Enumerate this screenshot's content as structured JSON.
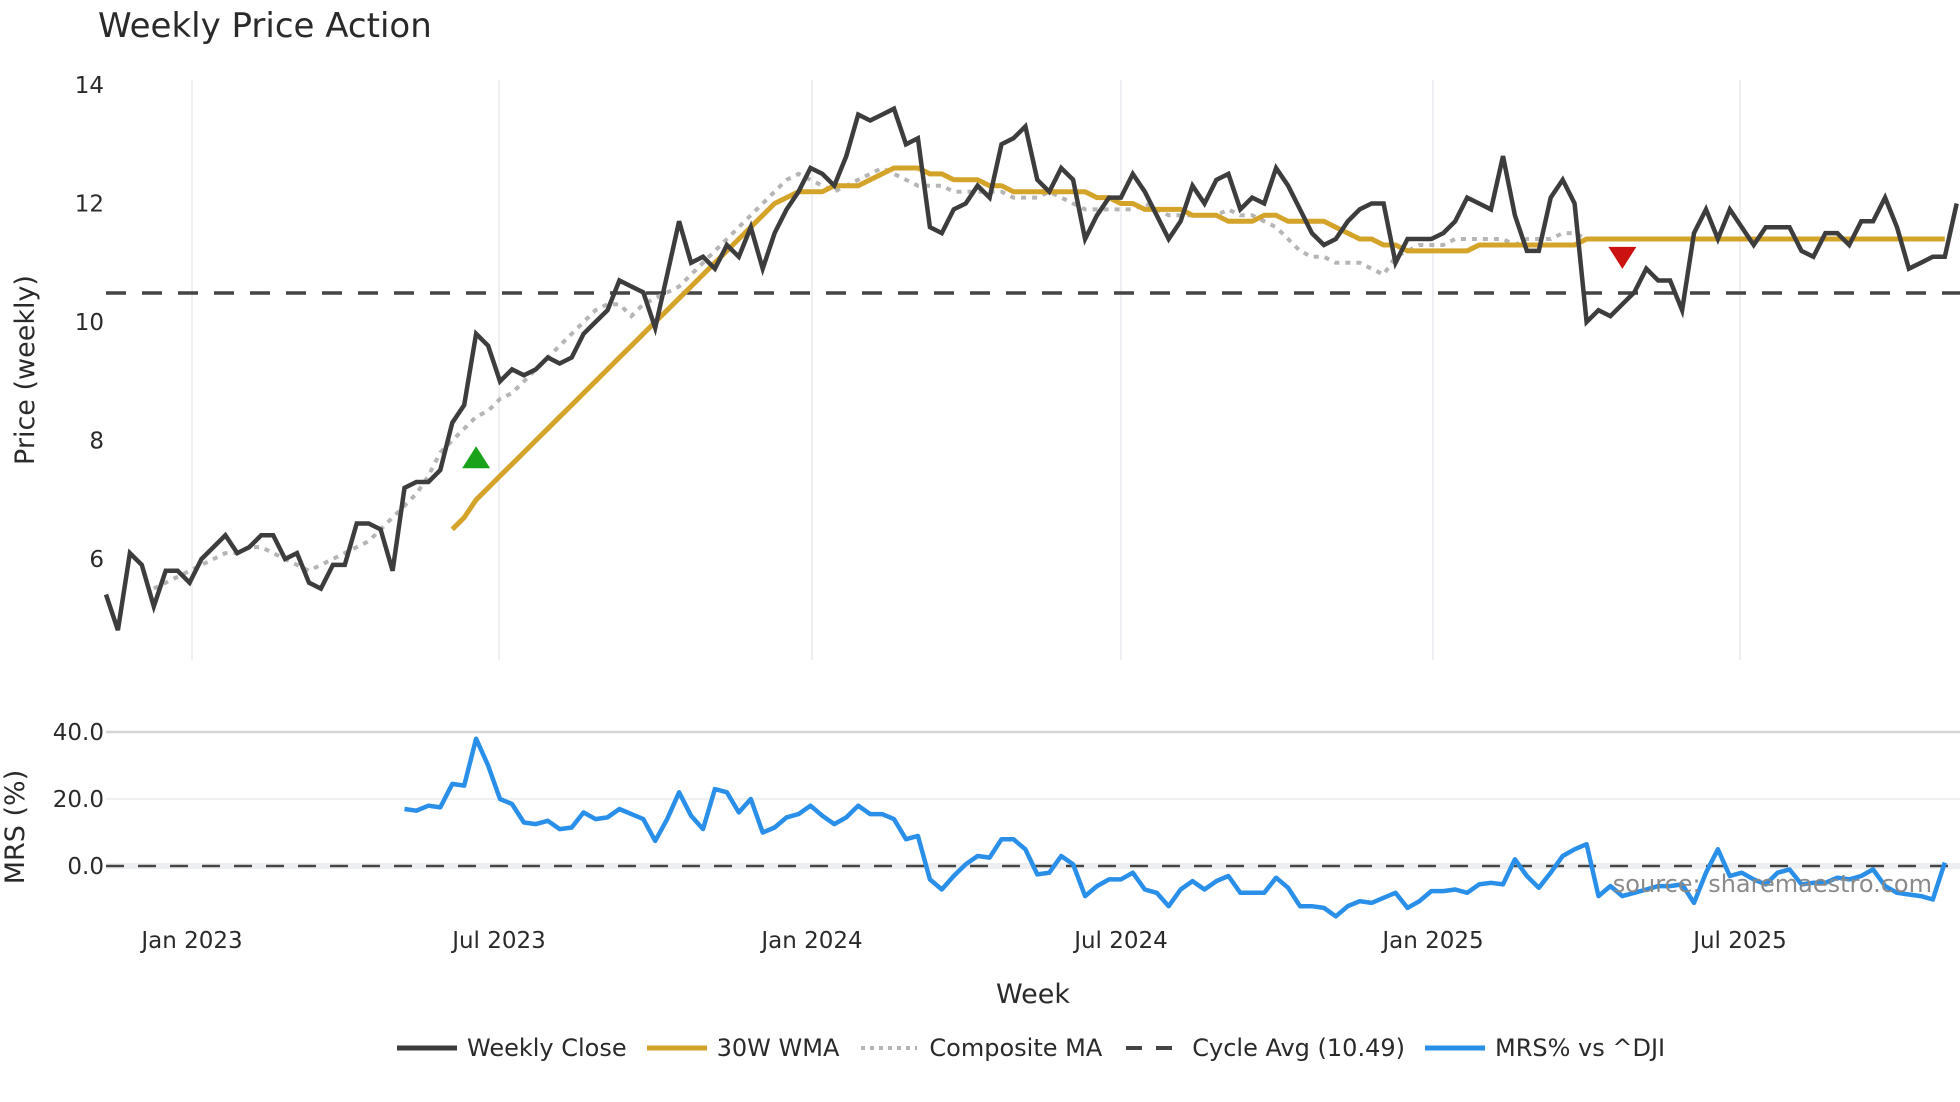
{
  "title": "Weekly Price Action",
  "watermark": "source: sharemaestro.com",
  "colors": {
    "weekly_close": "#3d3d3d",
    "wma30": "#d4a32a",
    "composite_ma": "#b5b5b5",
    "cycle_avg": "#444444",
    "mrs": "#2a8fe8",
    "buy_marker": "#1aa31a",
    "sell_marker": "#cc1111",
    "grid": "#e8eaee"
  },
  "legend": [
    {
      "key": "weekly_close",
      "label": "Weekly Close",
      "style": "solid"
    },
    {
      "key": "wma30",
      "label": "30W WMA",
      "style": "solid"
    },
    {
      "key": "composite_ma",
      "label": "Composite MA",
      "style": "dotted"
    },
    {
      "key": "cycle_avg",
      "label": "Cycle Avg (10.49)",
      "style": "dashed"
    },
    {
      "key": "mrs",
      "label": "MRS% vs ^DJI",
      "style": "solid"
    }
  ],
  "chart_data": [
    {
      "type": "line",
      "title": "Weekly Price Action",
      "xlabel": "Week",
      "ylabel": "Price (weekly)",
      "ylim": [
        4.3,
        14.3
      ],
      "yticks": [
        6,
        8,
        10,
        12,
        14
      ],
      "xticks": [
        "Jan 2023",
        "Jul 2023",
        "Jan 2024",
        "Jul 2024",
        "Jan 2025",
        "Jul 2025"
      ],
      "grid": true,
      "legend_position": "bottom",
      "x_start": "2022-11-07",
      "x_step": "1 week",
      "series": [
        {
          "name": "Weekly Close",
          "values": [
            5.4,
            4.8,
            6.1,
            5.9,
            5.2,
            5.8,
            5.8,
            5.6,
            6.0,
            6.2,
            6.4,
            6.1,
            6.2,
            6.4,
            6.4,
            6.0,
            6.1,
            5.6,
            5.5,
            5.9,
            5.9,
            6.6,
            6.6,
            6.5,
            5.8,
            7.2,
            7.3,
            7.3,
            7.5,
            8.3,
            8.6,
            9.8,
            9.6,
            9.0,
            9.2,
            9.1,
            9.2,
            9.4,
            9.3,
            9.4,
            9.8,
            10.0,
            10.2,
            10.7,
            10.6,
            10.5,
            9.9,
            10.8,
            11.7,
            11.0,
            11.1,
            10.9,
            11.3,
            11.1,
            11.6,
            10.9,
            11.5,
            11.9,
            12.2,
            12.6,
            12.5,
            12.3,
            12.8,
            13.5,
            13.4,
            13.5,
            13.6,
            13.0,
            13.1,
            11.6,
            11.5,
            11.9,
            12.0,
            12.3,
            12.1,
            13.0,
            13.1,
            13.3,
            12.4,
            12.2,
            12.6,
            12.4,
            11.4,
            11.8,
            12.1,
            12.1,
            12.5,
            12.2,
            11.8,
            11.4,
            11.7,
            12.3,
            12.0,
            12.4,
            12.5,
            11.9,
            12.1,
            12.0,
            12.6,
            12.3,
            11.9,
            11.5,
            11.3,
            11.4,
            11.7,
            11.9,
            12.0,
            12.0,
            11.0,
            11.4,
            11.4,
            11.4,
            11.5,
            11.7,
            12.1,
            12.0,
            11.9,
            12.8,
            11.8,
            11.2,
            11.2,
            12.1,
            12.4,
            12.0,
            10.0,
            10.2,
            10.1,
            10.3,
            10.5,
            10.9,
            10.7,
            10.7,
            10.2,
            11.5,
            11.9,
            11.4,
            11.9,
            11.6,
            11.3,
            11.6,
            11.6,
            11.6,
            11.2,
            11.1,
            11.5,
            11.5,
            11.3,
            11.7,
            11.7,
            12.1,
            11.6,
            10.9,
            11.0,
            11.1,
            11.1,
            12.0
          ]
        },
        {
          "name": "30W WMA",
          "start_index": 29,
          "values": [
            6.5,
            6.7,
            7.0,
            7.2,
            7.4,
            7.6,
            7.8,
            8.0,
            8.2,
            8.4,
            8.6,
            8.8,
            9.0,
            9.2,
            9.4,
            9.6,
            9.8,
            10.0,
            10.2,
            10.4,
            10.6,
            10.8,
            11.0,
            11.2,
            11.4,
            11.6,
            11.8,
            12.0,
            12.1,
            12.2,
            12.2,
            12.2,
            12.3,
            12.3,
            12.3,
            12.4,
            12.5,
            12.6,
            12.6,
            12.6,
            12.5,
            12.5,
            12.4,
            12.4,
            12.4,
            12.3,
            12.3,
            12.2,
            12.2,
            12.2,
            12.2,
            12.2,
            12.2,
            12.2,
            12.1,
            12.1,
            12.0,
            12.0,
            11.9,
            11.9,
            11.9,
            11.9,
            11.8,
            11.8,
            11.8,
            11.7,
            11.7,
            11.7,
            11.8,
            11.8,
            11.7,
            11.7,
            11.7,
            11.7,
            11.6,
            11.5,
            11.4,
            11.4,
            11.3,
            11.3,
            11.2,
            11.2,
            11.2,
            11.2,
            11.2,
            11.2,
            11.3,
            11.3,
            11.3,
            11.3,
            11.3,
            11.3,
            11.3,
            11.3,
            11.3,
            11.4,
            11.4,
            11.4,
            11.4,
            11.4,
            11.4,
            11.4,
            11.4,
            11.4,
            11.4,
            11.4,
            11.4,
            11.4,
            11.4,
            11.4,
            11.4,
            11.4,
            11.4,
            11.4,
            11.4,
            11.4,
            11.4,
            11.4,
            11.4,
            11.4,
            11.4,
            11.4,
            11.4,
            11.4,
            11.4,
            11.4
          ]
        },
        {
          "name": "Composite MA",
          "start_index": 4,
          "values": [
            5.5,
            5.6,
            5.7,
            5.8,
            5.9,
            6.0,
            6.1,
            6.1,
            6.2,
            6.2,
            6.1,
            6.0,
            5.9,
            5.8,
            5.9,
            6.0,
            6.1,
            6.2,
            6.3,
            6.5,
            6.7,
            6.9,
            7.1,
            7.4,
            7.8,
            8.0,
            8.2,
            8.4,
            8.5,
            8.7,
            8.8,
            9.0,
            9.2,
            9.4,
            9.6,
            9.8,
            10.0,
            10.2,
            10.3,
            10.3,
            10.1,
            10.3,
            10.4,
            10.5,
            10.6,
            10.8,
            11.0,
            11.2,
            11.4,
            11.6,
            11.8,
            12.0,
            12.2,
            12.4,
            12.5,
            12.4,
            12.3,
            12.2,
            12.3,
            12.4,
            12.5,
            12.6,
            12.5,
            12.4,
            12.3,
            12.3,
            12.3,
            12.2,
            12.2,
            12.2,
            12.2,
            12.2,
            12.1,
            12.1,
            12.1,
            12.2,
            12.1,
            12.0,
            11.9,
            11.9,
            11.9,
            11.9,
            11.9,
            12.0,
            11.9,
            11.8,
            11.8,
            11.8,
            11.8,
            11.8,
            11.9,
            11.8,
            11.8,
            11.7,
            11.6,
            11.4,
            11.2,
            11.1,
            11.1,
            11.0,
            11.0,
            11.0,
            10.9,
            10.8,
            11.1,
            11.2,
            11.3,
            11.3,
            11.3,
            11.4,
            11.4,
            11.4,
            11.4,
            11.4,
            11.3,
            11.4,
            11.4,
            11.4,
            11.5,
            11.5,
            11.4,
            11.4,
            11.4,
            11.4,
            11.4,
            11.4,
            11.4,
            11.4,
            11.4,
            11.4,
            11.4,
            11.4,
            11.4,
            11.4,
            11.4,
            11.4,
            11.4,
            11.4,
            11.4
          ]
        },
        {
          "name": "Cycle Avg (10.49)",
          "constant": 10.49
        }
      ],
      "markers": [
        {
          "type": "buy",
          "shape": "triangle-up",
          "index": 31,
          "value": 7.7
        },
        {
          "type": "sell",
          "shape": "triangle-down",
          "index": 127,
          "value": 11.1
        }
      ]
    },
    {
      "type": "line",
      "title": "",
      "xlabel": "Week",
      "ylabel": "MRS (%)",
      "ylim": [
        -18,
        42
      ],
      "yticks": [
        "40.0",
        "20.0",
        "0.0"
      ],
      "reference_line": 0,
      "series": [
        {
          "name": "MRS% vs ^DJI",
          "start_index": 25,
          "values": [
            17,
            16.5,
            18,
            17.5,
            24.5,
            24,
            38,
            30,
            20,
            18.5,
            13,
            12.5,
            13.5,
            11,
            11.5,
            16,
            14,
            14.5,
            17,
            15.5,
            14,
            7.5,
            14,
            22,
            15,
            11,
            23,
            22,
            16,
            20,
            10,
            11.5,
            14.5,
            15.5,
            18,
            15,
            12.5,
            14.5,
            18,
            15.5,
            15.5,
            14,
            8,
            9,
            -4,
            -7,
            -3,
            0.5,
            3,
            2.5,
            8,
            8,
            5,
            -2.5,
            -2,
            3,
            0.5,
            -9,
            -6,
            -4,
            -4,
            -2,
            -7,
            -8,
            -12,
            -7,
            -4.5,
            -7,
            -4.5,
            -3,
            -8,
            -8,
            -8,
            -3.5,
            -6.5,
            -12,
            -12,
            -12.5,
            -15,
            -12,
            -10.5,
            -11,
            -9.5,
            -8,
            -12.5,
            -10.5,
            -7.5,
            -7.5,
            -7,
            -8,
            -5.5,
            -5,
            -5.5,
            2,
            -3,
            -6.5,
            -2,
            3,
            5,
            6.5,
            -9,
            -6,
            -9,
            -8,
            -7,
            -6,
            -6,
            -5.5,
            -11,
            -2,
            5,
            -3,
            -2,
            -4,
            -5.5,
            -2,
            -1,
            -5.5,
            -5,
            -5,
            -3.5,
            -4,
            -3,
            -1,
            -6,
            -8,
            -8.5,
            -9,
            -10,
            1
          ]
        }
      ]
    }
  ],
  "axes": {
    "top": {
      "ylabel": "Price (weekly)",
      "ytick_labels": [
        "14",
        "12",
        "10",
        "8",
        "6"
      ]
    },
    "bottom": {
      "ylabel": "MRS (%)",
      "ytick_labels": [
        "40.0",
        "20.0",
        "0.0"
      ]
    },
    "xlabel": "Week",
    "xtick_labels": [
      "Jan 2023",
      "Jul 2023",
      "Jan 2024",
      "Jul 2024",
      "Jan 2025",
      "Jul 2025"
    ]
  }
}
